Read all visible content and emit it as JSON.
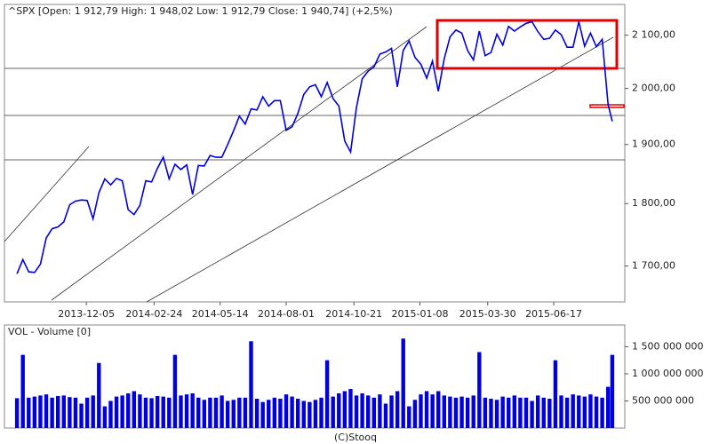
{
  "chart_data": [
    {
      "type": "line",
      "title": "^SPX [Open: 1 912,79 High: 1 948,02 Low: 1 912,79 Close: 1 940,74] (+2,5%)",
      "color": "#0000e0",
      "log": true,
      "grid": false,
      "x": [
        "2013-09-13",
        "2013-09-20",
        "2013-09-27",
        "2013-10-04",
        "2013-10-11",
        "2013-10-18",
        "2013-10-25",
        "2013-11-01",
        "2013-11-08",
        "2013-11-15",
        "2013-11-22",
        "2013-11-29",
        "2013-12-06",
        "2013-12-13",
        "2013-12-20",
        "2013-12-27",
        "2014-01-03",
        "2014-01-10",
        "2014-01-17",
        "2014-01-24",
        "2014-01-31",
        "2014-02-07",
        "2014-02-14",
        "2014-02-21",
        "2014-02-28",
        "2014-03-07",
        "2014-03-14",
        "2014-03-21",
        "2014-03-28",
        "2014-04-04",
        "2014-04-11",
        "2014-04-18",
        "2014-04-25",
        "2014-05-02",
        "2014-05-09",
        "2014-05-16",
        "2014-05-23",
        "2014-05-30",
        "2014-06-06",
        "2014-06-13",
        "2014-06-20",
        "2014-06-27",
        "2014-07-04",
        "2014-07-11",
        "2014-07-18",
        "2014-07-25",
        "2014-08-01",
        "2014-08-08",
        "2014-08-15",
        "2014-08-22",
        "2014-08-29",
        "2014-09-05",
        "2014-09-12",
        "2014-09-19",
        "2014-09-26",
        "2014-10-03",
        "2014-10-10",
        "2014-10-17",
        "2014-10-24",
        "2014-10-31",
        "2014-11-07",
        "2014-11-14",
        "2014-11-21",
        "2014-11-28",
        "2014-12-05",
        "2014-12-12",
        "2014-12-19",
        "2014-12-26",
        "2015-01-02",
        "2015-01-09",
        "2015-01-16",
        "2015-01-23",
        "2015-01-30",
        "2015-02-06",
        "2015-02-13",
        "2015-02-20",
        "2015-02-27",
        "2015-03-06",
        "2015-03-13",
        "2015-03-20",
        "2015-03-27",
        "2015-04-03",
        "2015-04-10",
        "2015-04-17",
        "2015-04-24",
        "2015-05-01",
        "2015-05-08",
        "2015-05-15",
        "2015-05-22",
        "2015-05-29",
        "2015-06-05",
        "2015-06-12",
        "2015-06-19",
        "2015-06-26",
        "2015-07-03",
        "2015-07-10",
        "2015-07-17",
        "2015-07-24",
        "2015-07-31",
        "2015-08-07",
        "2015-08-14",
        "2015-08-21",
        "2015-08-26"
      ],
      "values": [
        1688,
        1710,
        1691,
        1690,
        1703,
        1744,
        1759,
        1762,
        1770,
        1798,
        1804,
        1806,
        1805,
        1775,
        1818,
        1841,
        1831,
        1842,
        1838,
        1790,
        1782,
        1797,
        1838,
        1836,
        1859,
        1878,
        1841,
        1866,
        1857,
        1865,
        1815,
        1864,
        1863,
        1881,
        1878,
        1878,
        1900,
        1924,
        1950,
        1936,
        1963,
        1961,
        1985,
        1968,
        1978,
        1978,
        1925,
        1931,
        1955,
        1989,
        2003,
        2007,
        1985,
        2011,
        1982,
        1968,
        1906,
        1887,
        1965,
        2018,
        2032,
        2040,
        2064,
        2068,
        2075,
        2003,
        2071,
        2089,
        2058,
        2045,
        2019,
        2051,
        1995,
        2055,
        2097,
        2110,
        2104,
        2071,
        2053,
        2108,
        2061,
        2067,
        2102,
        2081,
        2117,
        2108,
        2116,
        2123,
        2126,
        2107,
        2092,
        2094,
        2110,
        2101,
        2077,
        2077,
        2126,
        2079,
        2104,
        2078,
        2092,
        1971,
        1940.74
      ],
      "xlim": [
        "2013-08-29",
        "2015-09-10"
      ],
      "xticks": [
        "2013-12-05",
        "2014-02-24",
        "2014-05-14",
        "2014-08-01",
        "2014-10-21",
        "2015-01-08",
        "2015-03-30",
        "2015-06-17"
      ],
      "ylim": [
        1645,
        2160
      ],
      "yticks": [
        {
          "value": 1700,
          "label": "1 700,00"
        },
        {
          "value": 1800,
          "label": "1 800,00"
        },
        {
          "value": 1900,
          "label": "1 900,00"
        },
        {
          "value": 2000,
          "label": "2 000,00"
        },
        {
          "value": 2100,
          "label": "2 100,00"
        }
      ]
    },
    {
      "type": "bar",
      "title": "VOL - Volume [0]",
      "color": "#0000e0",
      "x": [
        "2013-09-13",
        "2013-09-20",
        "2013-09-27",
        "2013-10-04",
        "2013-10-11",
        "2013-10-18",
        "2013-10-25",
        "2013-11-01",
        "2013-11-08",
        "2013-11-15",
        "2013-11-22",
        "2013-11-29",
        "2013-12-06",
        "2013-12-13",
        "2013-12-20",
        "2013-12-27",
        "2014-01-03",
        "2014-01-10",
        "2014-01-17",
        "2014-01-24",
        "2014-01-31",
        "2014-02-07",
        "2014-02-14",
        "2014-02-21",
        "2014-02-28",
        "2014-03-07",
        "2014-03-14",
        "2014-03-21",
        "2014-03-28",
        "2014-04-04",
        "2014-04-11",
        "2014-04-18",
        "2014-04-25",
        "2014-05-02",
        "2014-05-09",
        "2014-05-16",
        "2014-05-23",
        "2014-05-30",
        "2014-06-06",
        "2014-06-13",
        "2014-06-20",
        "2014-06-27",
        "2014-07-04",
        "2014-07-11",
        "2014-07-18",
        "2014-07-25",
        "2014-08-01",
        "2014-08-08",
        "2014-08-15",
        "2014-08-22",
        "2014-08-29",
        "2014-09-05",
        "2014-09-12",
        "2014-09-19",
        "2014-09-26",
        "2014-10-03",
        "2014-10-10",
        "2014-10-17",
        "2014-10-24",
        "2014-10-31",
        "2014-11-07",
        "2014-11-14",
        "2014-11-21",
        "2014-11-28",
        "2014-12-05",
        "2014-12-12",
        "2014-12-19",
        "2014-12-26",
        "2015-01-02",
        "2015-01-09",
        "2015-01-16",
        "2015-01-23",
        "2015-01-30",
        "2015-02-06",
        "2015-02-13",
        "2015-02-20",
        "2015-02-27",
        "2015-03-06",
        "2015-03-13",
        "2015-03-20",
        "2015-03-27",
        "2015-04-03",
        "2015-04-10",
        "2015-04-17",
        "2015-04-24",
        "2015-05-01",
        "2015-05-08",
        "2015-05-15",
        "2015-05-22",
        "2015-05-29",
        "2015-06-05",
        "2015-06-12",
        "2015-06-19",
        "2015-06-26",
        "2015-07-03",
        "2015-07-10",
        "2015-07-17",
        "2015-07-24",
        "2015-07-31",
        "2015-08-07",
        "2015-08-14",
        "2015-08-21",
        "2015-08-26"
      ],
      "values": [
        550000000,
        1350000000,
        560000000,
        580000000,
        600000000,
        620000000,
        560000000,
        590000000,
        600000000,
        570000000,
        560000000,
        450000000,
        560000000,
        600000000,
        1200000000,
        400000000,
        500000000,
        580000000,
        600000000,
        640000000,
        680000000,
        620000000,
        560000000,
        550000000,
        590000000,
        580000000,
        560000000,
        1350000000,
        600000000,
        620000000,
        640000000,
        560000000,
        520000000,
        560000000,
        560000000,
        600000000,
        500000000,
        520000000,
        560000000,
        560000000,
        1600000000,
        540000000,
        480000000,
        520000000,
        560000000,
        540000000,
        620000000,
        580000000,
        540000000,
        500000000,
        480000000,
        520000000,
        560000000,
        1250000000,
        580000000,
        640000000,
        680000000,
        720000000,
        600000000,
        640000000,
        600000000,
        560000000,
        620000000,
        450000000,
        600000000,
        680000000,
        1650000000,
        400000000,
        520000000,
        620000000,
        680000000,
        620000000,
        680000000,
        600000000,
        580000000,
        560000000,
        580000000,
        560000000,
        600000000,
        1400000000,
        560000000,
        540000000,
        520000000,
        580000000,
        560000000,
        600000000,
        560000000,
        560000000,
        500000000,
        600000000,
        560000000,
        540000000,
        1250000000,
        600000000,
        560000000,
        620000000,
        600000000,
        580000000,
        620000000,
        580000000,
        560000000,
        760000000,
        1350000000
      ],
      "ylim": [
        0,
        1900000000
      ],
      "yticks": [
        {
          "value": 500000000,
          "label": "500 000 000"
        },
        {
          "value": 1000000000,
          "label": "1 000 000 000"
        },
        {
          "value": 1500000000,
          "label": "1 500 000 000"
        }
      ]
    }
  ],
  "footer": "(C)Stooq"
}
